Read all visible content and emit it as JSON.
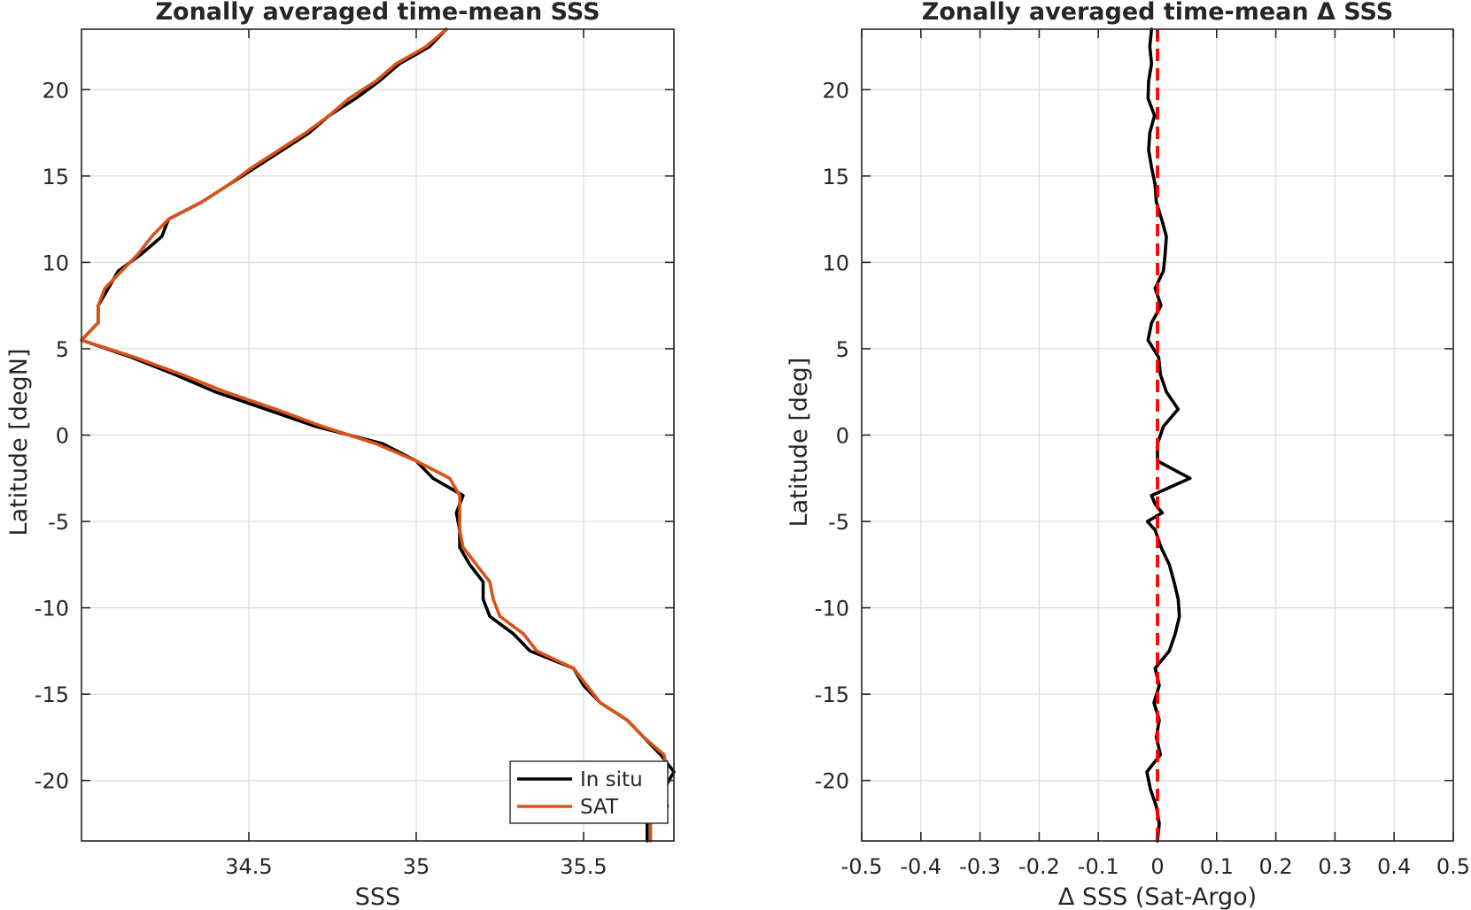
{
  "colors": {
    "in_situ": "#000000",
    "sat": "#d95319",
    "zero_line": "#ff0000",
    "grid": "#dcdcdc",
    "axis": "#262626"
  },
  "chart_data": [
    {
      "type": "line",
      "title": "Zonally averaged time-mean SSS",
      "xlabel": "SSS",
      "ylabel": "Latitude [degN]",
      "xlim": [
        34.0,
        35.77
      ],
      "ylim": [
        -23.5,
        23.5
      ],
      "x_ticks": [
        34.5,
        35,
        35.5
      ],
      "x_tick_labels": [
        "34.5",
        "35",
        "35.5"
      ],
      "y_ticks": [
        -20,
        -15,
        -10,
        -5,
        0,
        5,
        10,
        15,
        20
      ],
      "y_tick_labels": [
        "-20",
        "-15",
        "-10",
        "-5",
        "0",
        "5",
        "10",
        "15",
        "20"
      ],
      "grid": true,
      "legend": {
        "location": "bottom-right",
        "entries": [
          "In situ",
          "SAT"
        ]
      },
      "series": [
        {
          "name": "In situ",
          "points": [
            [
              35.69,
              -23.5
            ],
            [
              35.69,
              -22.5
            ],
            [
              35.75,
              -21.5
            ],
            [
              35.74,
              -20.5
            ],
            [
              35.77,
              -19.5
            ],
            [
              35.73,
              -18.5
            ],
            [
              35.68,
              -17.5
            ],
            [
              35.63,
              -16.5
            ],
            [
              35.55,
              -15.5
            ],
            [
              35.5,
              -14.5
            ],
            [
              35.47,
              -13.5
            ],
            [
              35.34,
              -12.5
            ],
            [
              35.29,
              -11.5
            ],
            [
              35.22,
              -10.5
            ],
            [
              35.2,
              -9.5
            ],
            [
              35.2,
              -8.5
            ],
            [
              35.16,
              -7.5
            ],
            [
              35.13,
              -6.5
            ],
            [
              35.13,
              -5.5
            ],
            [
              35.12,
              -4.5
            ],
            [
              35.14,
              -3.5
            ],
            [
              35.05,
              -2.5
            ],
            [
              35.0,
              -1.5
            ],
            [
              34.9,
              -0.5
            ],
            [
              34.7,
              0.5
            ],
            [
              34.55,
              1.5
            ],
            [
              34.4,
              2.5
            ],
            [
              34.28,
              3.5
            ],
            [
              34.15,
              4.5
            ],
            [
              34.0,
              5.5
            ],
            [
              34.05,
              6.5
            ],
            [
              34.05,
              7.5
            ],
            [
              34.08,
              8.5
            ],
            [
              34.11,
              9.5
            ],
            [
              34.18,
              10.5
            ],
            [
              34.24,
              11.5
            ],
            [
              34.26,
              12.5
            ],
            [
              34.36,
              13.5
            ],
            [
              34.44,
              14.5
            ],
            [
              34.52,
              15.5
            ],
            [
              34.6,
              16.5
            ],
            [
              34.68,
              17.5
            ],
            [
              34.74,
              18.5
            ],
            [
              34.82,
              19.5
            ],
            [
              34.89,
              20.5
            ],
            [
              34.95,
              21.5
            ],
            [
              35.04,
              22.5
            ],
            [
              35.09,
              23.5
            ]
          ]
        },
        {
          "name": "SAT",
          "points": [
            [
              35.7,
              -23.5
            ],
            [
              35.7,
              -22.5
            ],
            [
              35.74,
              -21.5
            ],
            [
              35.73,
              -20.5
            ],
            [
              35.75,
              -19.5
            ],
            [
              35.74,
              -18.5
            ],
            [
              35.68,
              -17.5
            ],
            [
              35.63,
              -16.5
            ],
            [
              35.55,
              -15.5
            ],
            [
              35.51,
              -14.5
            ],
            [
              35.47,
              -13.5
            ],
            [
              35.36,
              -12.5
            ],
            [
              35.32,
              -11.5
            ],
            [
              35.25,
              -10.5
            ],
            [
              35.23,
              -9.5
            ],
            [
              35.22,
              -8.5
            ],
            [
              35.18,
              -7.5
            ],
            [
              35.14,
              -6.5
            ],
            [
              35.13,
              -5.5
            ],
            [
              35.13,
              -4.5
            ],
            [
              35.13,
              -3.5
            ],
            [
              35.1,
              -2.5
            ],
            [
              35.0,
              -1.5
            ],
            [
              34.88,
              -0.5
            ],
            [
              34.72,
              0.5
            ],
            [
              34.58,
              1.5
            ],
            [
              34.43,
              2.5
            ],
            [
              34.3,
              3.5
            ],
            [
              34.16,
              4.5
            ],
            [
              34.0,
              5.5
            ],
            [
              34.05,
              6.5
            ],
            [
              34.05,
              7.5
            ],
            [
              34.07,
              8.5
            ],
            [
              34.12,
              9.5
            ],
            [
              34.17,
              10.5
            ],
            [
              34.21,
              11.5
            ],
            [
              34.26,
              12.5
            ],
            [
              34.36,
              13.5
            ],
            [
              34.44,
              14.5
            ],
            [
              34.51,
              15.5
            ],
            [
              34.59,
              16.5
            ],
            [
              34.67,
              17.5
            ],
            [
              34.74,
              18.5
            ],
            [
              34.8,
              19.5
            ],
            [
              34.88,
              20.5
            ],
            [
              34.94,
              21.5
            ],
            [
              35.03,
              22.5
            ],
            [
              35.09,
              23.5
            ]
          ]
        }
      ]
    },
    {
      "type": "line",
      "title": "Zonally averaged time-mean Δ SSS",
      "xlabel": "Δ SSS (Sat-Argo)",
      "ylabel": "Latitude [deg]",
      "xlim": [
        -0.5,
        0.5
      ],
      "ylim": [
        -23.5,
        23.5
      ],
      "x_ticks": [
        -0.5,
        -0.4,
        -0.3,
        -0.2,
        -0.1,
        0,
        0.1,
        0.2,
        0.3,
        0.4,
        0.5
      ],
      "x_tick_labels": [
        "-0.5",
        "-0.4",
        "-0.3",
        "-0.2",
        "-0.1",
        "0",
        "0.1",
        "0.2",
        "0.3",
        "0.4",
        "0.5"
      ],
      "y_ticks": [
        -20,
        -15,
        -10,
        -5,
        0,
        5,
        10,
        15,
        20
      ],
      "y_tick_labels": [
        "-20",
        "-15",
        "-10",
        "-5",
        "0",
        "5",
        "10",
        "15",
        "20"
      ],
      "grid": true,
      "reference_line": {
        "x": 0,
        "style": "dashed"
      },
      "series": [
        {
          "points": [
            [
              0.0,
              -23.5
            ],
            [
              0.003,
              -22.5
            ],
            [
              -0.002,
              -21.5
            ],
            [
              -0.012,
              -20.5
            ],
            [
              -0.018,
              -19.5
            ],
            [
              0.005,
              -18.5
            ],
            [
              -0.002,
              -17.5
            ],
            [
              0.003,
              -16.5
            ],
            [
              -0.006,
              -15.5
            ],
            [
              0.003,
              -14.5
            ],
            [
              -0.004,
              -13.5
            ],
            [
              0.02,
              -12.5
            ],
            [
              0.03,
              -11.5
            ],
            [
              0.037,
              -10.5
            ],
            [
              0.035,
              -9.5
            ],
            [
              0.028,
              -8.5
            ],
            [
              0.02,
              -7.5
            ],
            [
              0.006,
              -6.5
            ],
            [
              -0.004,
              -5.5
            ],
            [
              -0.017,
              -5.0
            ],
            [
              0.008,
              -4.5
            ],
            [
              -0.004,
              -4.0
            ],
            [
              -0.01,
              -3.5
            ],
            [
              0.055,
              -2.5
            ],
            [
              0.0,
              -1.5
            ],
            [
              0.0,
              -0.5
            ],
            [
              0.01,
              0.5
            ],
            [
              0.035,
              1.5
            ],
            [
              0.015,
              2.5
            ],
            [
              0.005,
              3.5
            ],
            [
              0.002,
              4.5
            ],
            [
              -0.016,
              5.5
            ],
            [
              -0.01,
              6.5
            ],
            [
              0.006,
              7.5
            ],
            [
              -0.004,
              8.5
            ],
            [
              0.01,
              9.5
            ],
            [
              0.013,
              10.5
            ],
            [
              0.015,
              11.5
            ],
            [
              0.007,
              12.5
            ],
            [
              -0.002,
              13.5
            ],
            [
              -0.004,
              14.5
            ],
            [
              -0.01,
              15.5
            ],
            [
              -0.015,
              16.5
            ],
            [
              -0.013,
              17.5
            ],
            [
              -0.005,
              18.5
            ],
            [
              -0.016,
              19.5
            ],
            [
              -0.015,
              20.5
            ],
            [
              -0.01,
              21.5
            ],
            [
              -0.013,
              22.5
            ],
            [
              -0.01,
              23.5
            ]
          ]
        }
      ]
    }
  ]
}
